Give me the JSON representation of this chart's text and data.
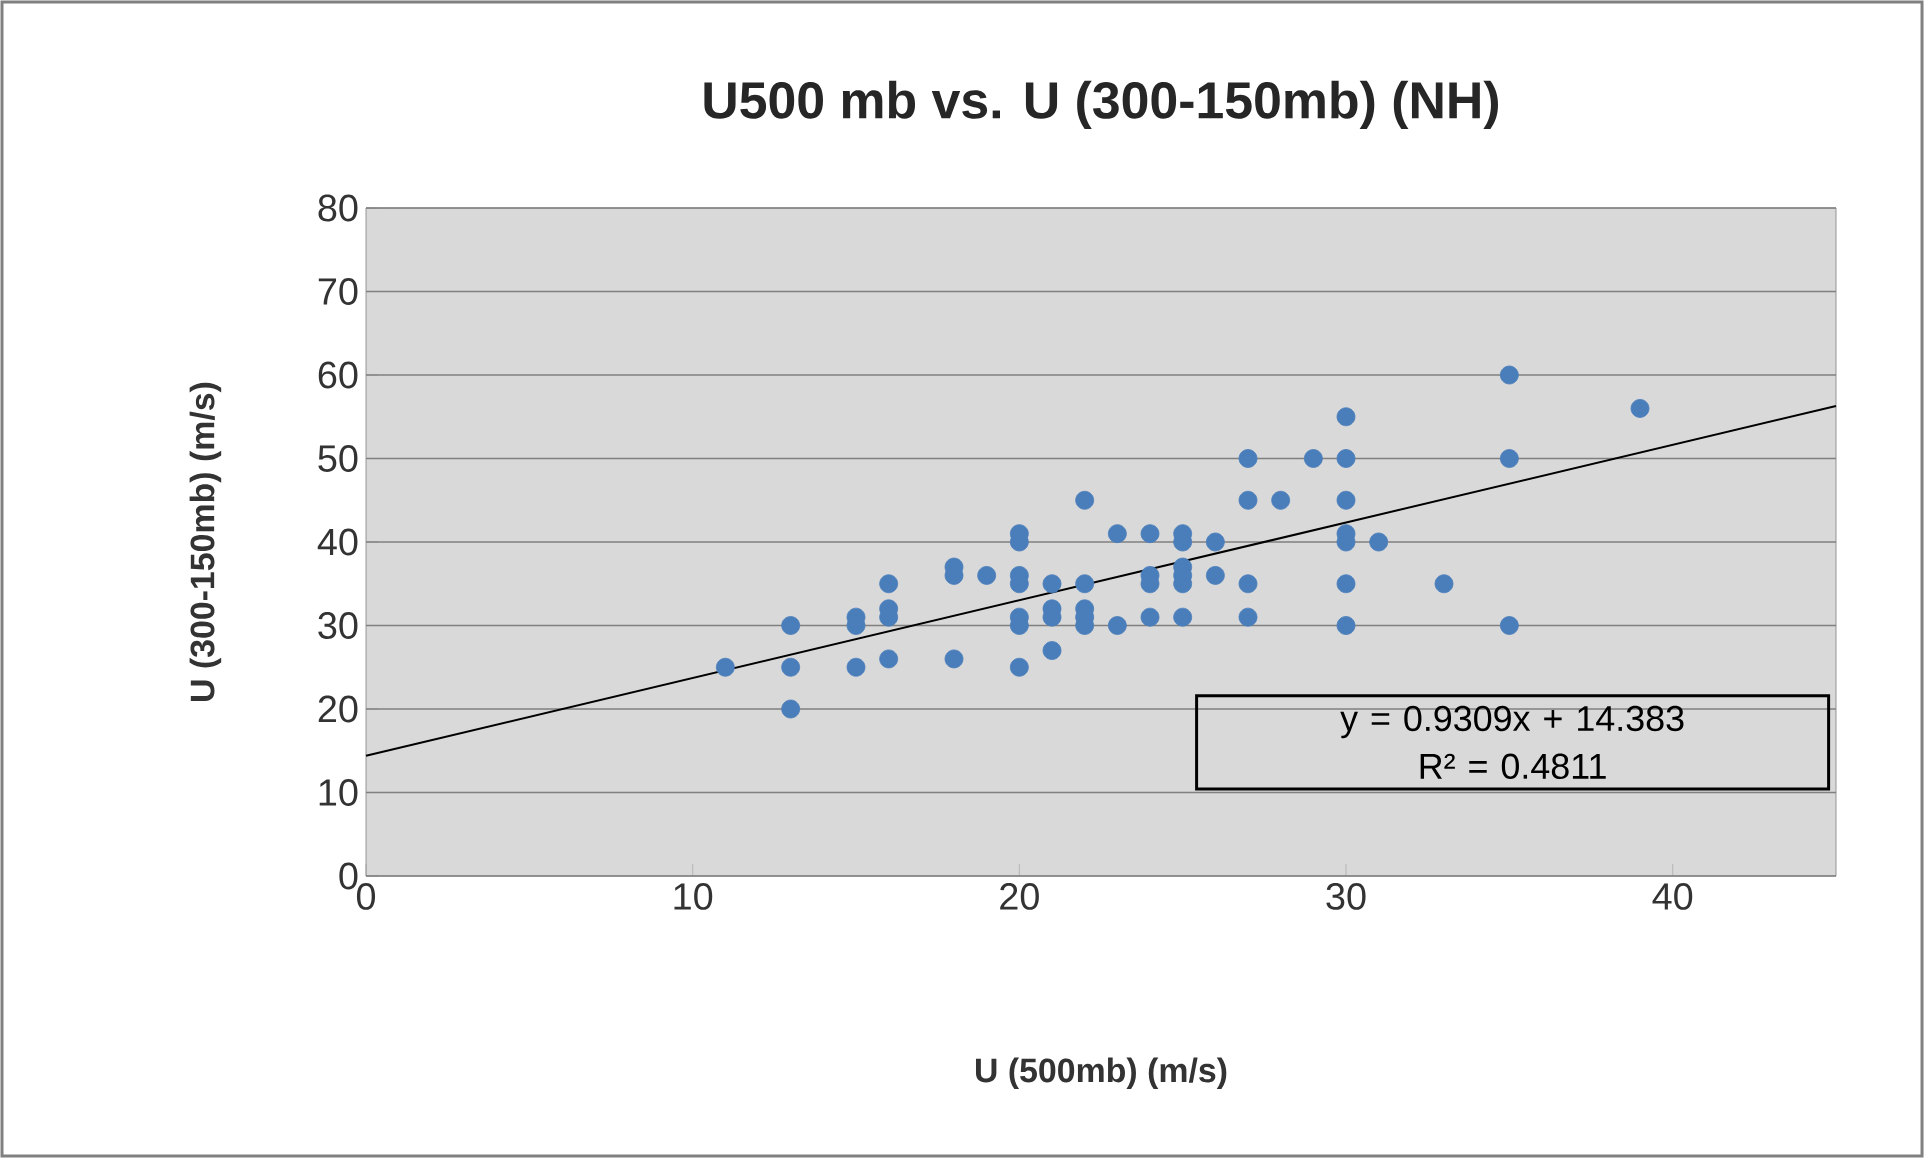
{
  "chart_data": {
    "type": "scatter",
    "title": "U500 mb vs. U (300-150mb) (NH)",
    "xlabel": "U (500mb) (m/s)",
    "ylabel": "U (300-150mb) (m/s)",
    "xlim": [
      0,
      45
    ],
    "xticks": [
      0,
      10,
      20,
      30,
      40
    ],
    "ylim": [
      0,
      80
    ],
    "yticks": [
      0,
      10,
      20,
      30,
      40,
      50,
      60,
      70,
      80
    ],
    "grid": "y",
    "annotations": [
      "y = 0.9309x + 14.383",
      "R² = 0.4811"
    ],
    "series": [
      {
        "marker": "circle",
        "color": "#4a7ebb",
        "x": [
          11,
          13,
          13,
          13,
          15,
          15,
          15,
          16,
          16,
          16,
          16,
          18,
          18,
          18,
          19,
          20,
          20,
          20,
          20,
          20,
          20,
          20,
          21,
          21,
          21,
          21,
          22,
          22,
          22,
          22,
          22,
          23,
          23,
          24,
          24,
          24,
          24,
          25,
          25,
          25,
          25,
          25,
          25,
          26,
          26,
          27,
          27,
          27,
          27,
          28,
          29,
          30,
          30,
          30,
          30,
          30,
          30,
          30,
          31,
          33,
          35,
          35,
          35,
          39
        ],
        "values": [
          25,
          30,
          25,
          20,
          31,
          30,
          25,
          35,
          32,
          31,
          26,
          37,
          36,
          26,
          36,
          41,
          40,
          36,
          35,
          31,
          30,
          25,
          35,
          32,
          31,
          27,
          45,
          35,
          32,
          31,
          30,
          41,
          30,
          41,
          36,
          35,
          31,
          41,
          40,
          37,
          36,
          35,
          31,
          40,
          36,
          50,
          45,
          35,
          31,
          45,
          50,
          55,
          50,
          45,
          41,
          40,
          35,
          30,
          40,
          35,
          60,
          50,
          30,
          56
        ]
      },
      {
        "type": "line",
        "marker": "none",
        "color": "#000000",
        "x": [
          0,
          45
        ],
        "values": [
          14.4,
          56.3
        ]
      }
    ]
  }
}
